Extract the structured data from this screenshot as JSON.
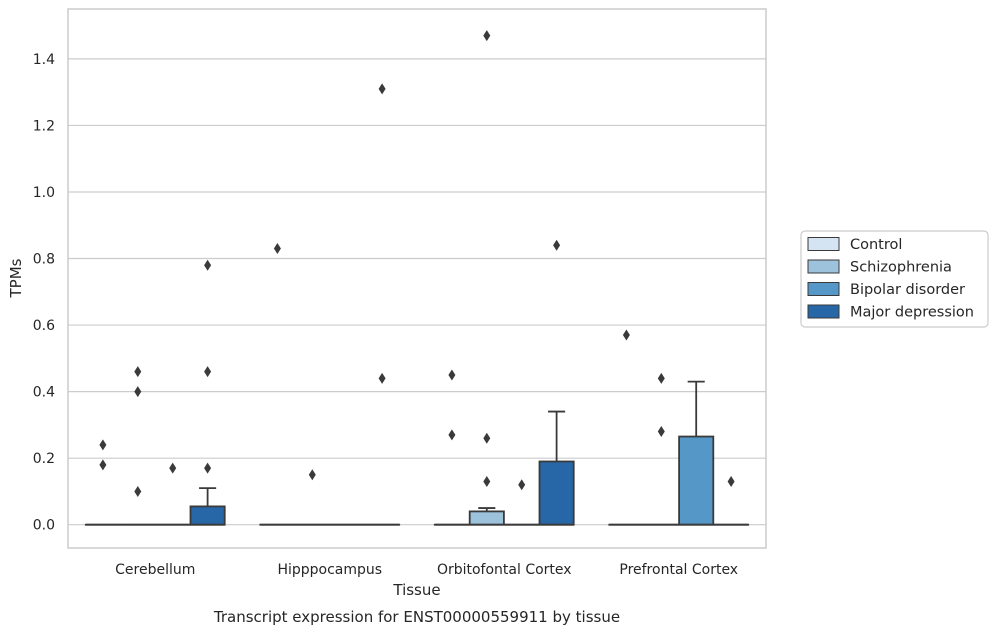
{
  "chart_data": {
    "type": "box",
    "caption": "Transcript expression for ENST00000559911 by tissue",
    "xlabel": "Tissue",
    "ylabel": "TPMs",
    "ylim": [
      -0.07,
      1.55
    ],
    "yticks": [
      0.0,
      0.2,
      0.4,
      0.6,
      0.8,
      1.0,
      1.2,
      1.4
    ],
    "ytick_labels": [
      "0.0",
      "0.2",
      "0.4",
      "0.6",
      "0.8",
      "1.0",
      "1.2",
      "1.4"
    ],
    "grid": true,
    "legend_position": "right",
    "categories": [
      "Cerebellum",
      "Hipppocampus",
      "Orbitofontal Cortex",
      "Prefrontal Cortex"
    ],
    "series": [
      {
        "name": "Control",
        "color": "#d4e4f3",
        "boxes": [
          {
            "q1": 0,
            "median": 0,
            "q3": 0,
            "whisker_low": 0,
            "whisker_high": 0,
            "outliers": [
              0.24,
              0.18
            ]
          },
          {
            "q1": 0,
            "median": 0,
            "q3": 0,
            "whisker_low": 0,
            "whisker_high": 0,
            "outliers": [
              0.83
            ]
          },
          {
            "q1": 0,
            "median": 0,
            "q3": 0,
            "whisker_low": 0,
            "whisker_high": 0,
            "outliers": [
              0.45,
              0.27
            ]
          },
          {
            "q1": 0,
            "median": 0,
            "q3": 0,
            "whisker_low": 0,
            "whisker_high": 0,
            "outliers": [
              0.57
            ]
          }
        ]
      },
      {
        "name": "Schizophrenia",
        "color": "#9cc2dc",
        "boxes": [
          {
            "q1": 0,
            "median": 0,
            "q3": 0,
            "whisker_low": 0,
            "whisker_high": 0,
            "outliers": [
              0.46,
              0.4,
              0.1
            ]
          },
          {
            "q1": 0,
            "median": 0,
            "q3": 0,
            "whisker_low": 0,
            "whisker_high": 0,
            "outliers": [
              0.15
            ]
          },
          {
            "q1": 0,
            "median": 0,
            "q3": 0.04,
            "whisker_low": 0,
            "whisker_high": 0.05,
            "outliers": [
              1.47,
              0.26,
              0.13
            ]
          },
          {
            "q1": 0,
            "median": 0,
            "q3": 0,
            "whisker_low": 0,
            "whisker_high": 0,
            "outliers": [
              0.44,
              0.28
            ]
          }
        ]
      },
      {
        "name": "Bipolar disorder",
        "color": "#5597c6",
        "boxes": [
          {
            "q1": 0,
            "median": 0,
            "q3": 0,
            "whisker_low": 0,
            "whisker_high": 0,
            "outliers": [
              0.17
            ]
          },
          {
            "q1": 0,
            "median": 0,
            "q3": 0,
            "whisker_low": 0,
            "whisker_high": 0,
            "outliers": []
          },
          {
            "q1": 0,
            "median": 0,
            "q3": 0,
            "whisker_low": 0,
            "whisker_high": 0,
            "outliers": [
              0.12
            ]
          },
          {
            "q1": 0,
            "median": 0,
            "q3": 0.265,
            "whisker_low": 0,
            "whisker_high": 0.43,
            "outliers": []
          }
        ]
      },
      {
        "name": "Major depression",
        "color": "#2767a8",
        "boxes": [
          {
            "q1": 0,
            "median": 0,
            "q3": 0.055,
            "whisker_low": 0,
            "whisker_high": 0.11,
            "outliers": [
              0.78,
              0.46,
              0.17
            ]
          },
          {
            "q1": 0,
            "median": 0,
            "q3": 0,
            "whisker_low": 0,
            "whisker_high": 0,
            "outliers": [
              1.31,
              0.44
            ]
          },
          {
            "q1": 0,
            "median": 0,
            "q3": 0.19,
            "whisker_low": 0,
            "whisker_high": 0.34,
            "outliers": [
              0.84
            ]
          },
          {
            "q1": 0,
            "median": 0,
            "q3": 0,
            "whisker_low": 0,
            "whisker_high": 0,
            "outliers": [
              0.13
            ]
          }
        ]
      }
    ]
  }
}
